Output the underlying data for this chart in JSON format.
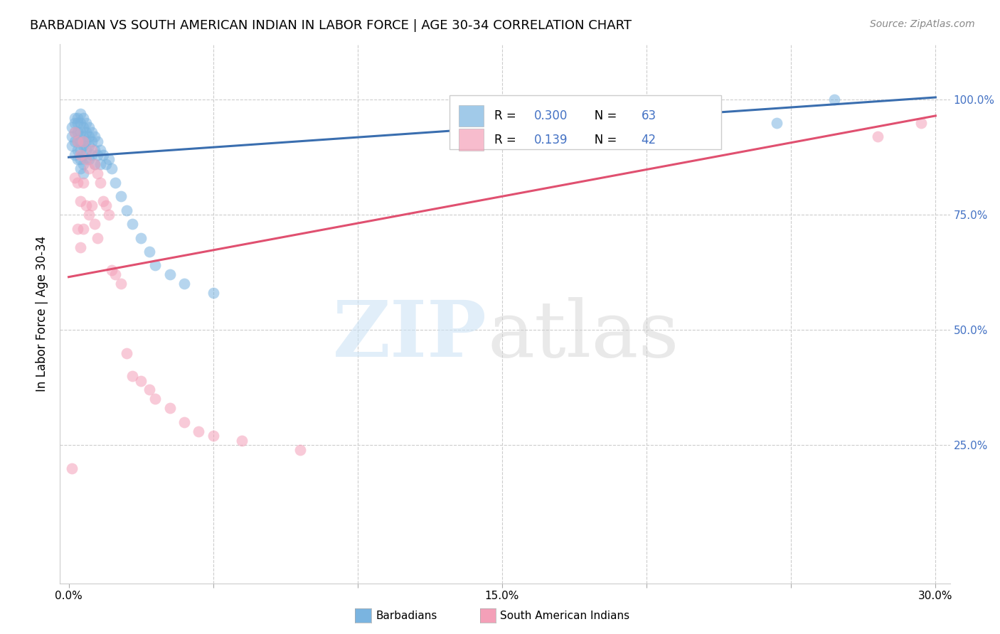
{
  "title": "BARBADIAN VS SOUTH AMERICAN INDIAN IN LABOR FORCE | AGE 30-34 CORRELATION CHART",
  "source": "Source: ZipAtlas.com",
  "ylabel": "In Labor Force | Age 30-34",
  "xlim": [
    -0.003,
    0.305
  ],
  "ylim": [
    -0.05,
    1.12
  ],
  "barbadian_color": "#7ab4e0",
  "sai_color": "#f4a0b8",
  "barbadian_line_color": "#3a6eaf",
  "sai_line_color": "#e05070",
  "legend_R_barbadian": "0.300",
  "legend_N_barbadian": "63",
  "legend_R_sai": "0.139",
  "legend_N_sai": "42",
  "blue_line_x0": 0.0,
  "blue_line_x1": 0.3,
  "blue_line_y0": 0.875,
  "blue_line_y1": 1.005,
  "pink_line_x0": 0.0,
  "pink_line_x1": 0.3,
  "pink_line_y0": 0.615,
  "pink_line_y1": 0.965,
  "barbadian_x": [
    0.001,
    0.001,
    0.001,
    0.002,
    0.002,
    0.002,
    0.002,
    0.002,
    0.003,
    0.003,
    0.003,
    0.003,
    0.003,
    0.003,
    0.004,
    0.004,
    0.004,
    0.004,
    0.004,
    0.004,
    0.004,
    0.005,
    0.005,
    0.005,
    0.005,
    0.005,
    0.005,
    0.005,
    0.006,
    0.006,
    0.006,
    0.006,
    0.006,
    0.007,
    0.007,
    0.007,
    0.007,
    0.008,
    0.008,
    0.008,
    0.009,
    0.009,
    0.009,
    0.01,
    0.01,
    0.011,
    0.011,
    0.012,
    0.013,
    0.014,
    0.015,
    0.016,
    0.018,
    0.02,
    0.022,
    0.025,
    0.028,
    0.03,
    0.035,
    0.04,
    0.05,
    0.245,
    0.265
  ],
  "barbadian_y": [
    0.94,
    0.92,
    0.9,
    0.96,
    0.95,
    0.93,
    0.91,
    0.88,
    0.96,
    0.95,
    0.93,
    0.91,
    0.89,
    0.87,
    0.97,
    0.95,
    0.93,
    0.91,
    0.89,
    0.87,
    0.85,
    0.96,
    0.94,
    0.92,
    0.9,
    0.88,
    0.86,
    0.84,
    0.95,
    0.93,
    0.91,
    0.89,
    0.87,
    0.94,
    0.92,
    0.9,
    0.87,
    0.93,
    0.91,
    0.88,
    0.92,
    0.89,
    0.86,
    0.91,
    0.88,
    0.89,
    0.86,
    0.88,
    0.86,
    0.87,
    0.85,
    0.82,
    0.79,
    0.76,
    0.73,
    0.7,
    0.67,
    0.64,
    0.62,
    0.6,
    0.58,
    0.95,
    1.0
  ],
  "sai_x": [
    0.001,
    0.002,
    0.002,
    0.003,
    0.003,
    0.003,
    0.004,
    0.004,
    0.004,
    0.005,
    0.005,
    0.005,
    0.006,
    0.006,
    0.007,
    0.007,
    0.008,
    0.008,
    0.009,
    0.009,
    0.01,
    0.01,
    0.011,
    0.012,
    0.013,
    0.014,
    0.015,
    0.016,
    0.018,
    0.02,
    0.022,
    0.025,
    0.028,
    0.03,
    0.035,
    0.04,
    0.045,
    0.05,
    0.06,
    0.08,
    0.28,
    0.295
  ],
  "sai_y": [
    0.2,
    0.93,
    0.83,
    0.91,
    0.82,
    0.72,
    0.88,
    0.78,
    0.68,
    0.91,
    0.82,
    0.72,
    0.87,
    0.77,
    0.85,
    0.75,
    0.89,
    0.77,
    0.86,
    0.73,
    0.84,
    0.7,
    0.82,
    0.78,
    0.77,
    0.75,
    0.63,
    0.62,
    0.6,
    0.45,
    0.4,
    0.39,
    0.37,
    0.35,
    0.33,
    0.3,
    0.28,
    0.27,
    0.26,
    0.24,
    0.92,
    0.95
  ]
}
